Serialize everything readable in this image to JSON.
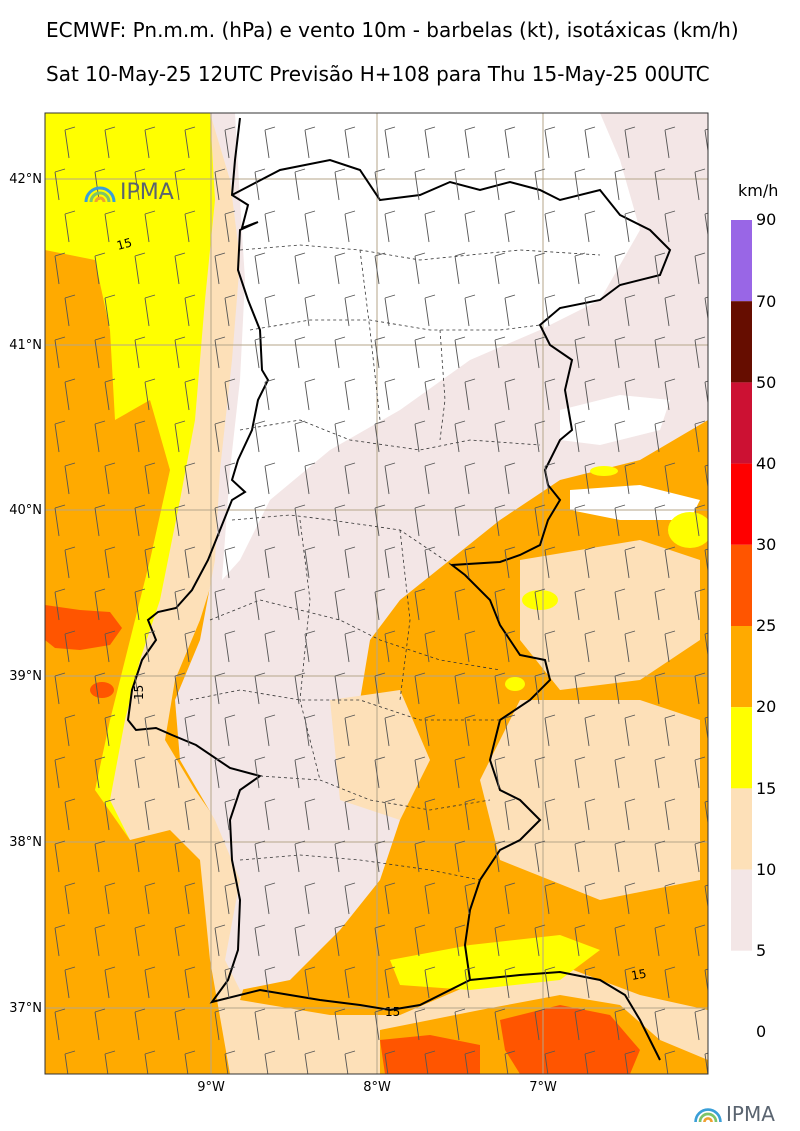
{
  "header": {
    "title": "ECMWF: Pn.m.m. (hPa) e vento 10m - barbelas (kt), isotáxicas (km/h)",
    "subtitle": "Sat 10-May-25 12UTC Previsão H+108 para Thu 15-May-25 00UTC"
  },
  "axes": {
    "latitudes": [
      "42°N",
      "41°N",
      "40°N",
      "39°N",
      "38°N",
      "37°N"
    ],
    "longitudes": [
      "9°W",
      "8°W",
      "7°W"
    ]
  },
  "colorbar": {
    "unit": "km/h",
    "levels": [
      "90",
      "70",
      "50",
      "40",
      "30",
      "25",
      "20",
      "15",
      "10",
      "5",
      "0"
    ],
    "colors": [
      "#9966e6",
      "#660d00",
      "#cc1133",
      "#ff0000",
      "#ff5500",
      "#ffaa00",
      "#ffff00",
      "#fde0b8",
      "#f3e6e6",
      "#ffffff"
    ]
  },
  "contour_labels": [
    "15",
    "15",
    "15",
    "15"
  ],
  "logo": {
    "name": "IPMA",
    "text": "IPMA"
  },
  "fill_colors": {
    "calm": "#ffffff",
    "c5": "#f3e6e6",
    "c10": "#fde0b8",
    "c15": "#ffff00",
    "c20": "#ffaa00",
    "c25": "#ff5500"
  }
}
